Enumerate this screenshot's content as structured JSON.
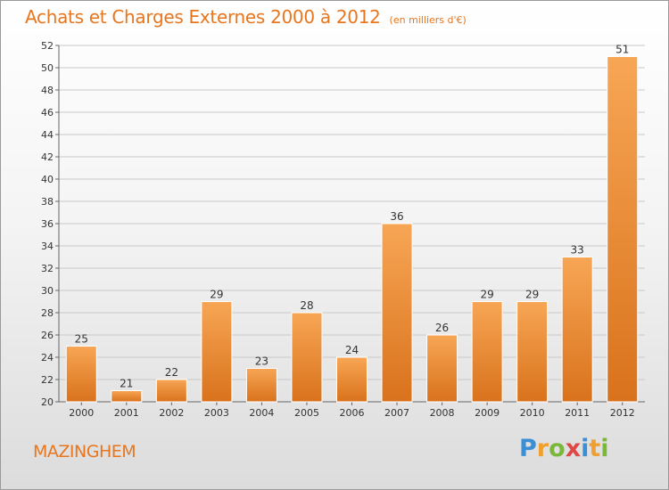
{
  "header": {
    "title": "Achats et Charges Externes 2000 à 2012",
    "subtitle": "(en milliers d'€)"
  },
  "footer": {
    "commune": "MAZINGHEM",
    "logo_text": "Proxiti",
    "logo_letters": [
      {
        "ch": "P",
        "color": "#3a8fd6"
      },
      {
        "ch": "r",
        "color": "#f0a030"
      },
      {
        "ch": "o",
        "color": "#7ab83a"
      },
      {
        "ch": "x",
        "color": "#e04848"
      },
      {
        "ch": "i",
        "color": "#3a8fd6"
      },
      {
        "ch": "t",
        "color": "#f0a030"
      },
      {
        "ch": "i",
        "color": "#7ab83a"
      }
    ]
  },
  "colors": {
    "accent": "#e8761e",
    "bar_light": "#f7a655",
    "bar_dark": "#d9721c",
    "grid": "#c8c8c8"
  },
  "chart_data": {
    "type": "bar",
    "title": "Achats et Charges Externes 2000 à 2012",
    "subtitle": "(en milliers d'€)",
    "categories": [
      "2000",
      "2001",
      "2002",
      "2003",
      "2004",
      "2005",
      "2006",
      "2007",
      "2008",
      "2009",
      "2010",
      "2011",
      "2012"
    ],
    "values": [
      25,
      21,
      22,
      29,
      23,
      28,
      24,
      36,
      26,
      29,
      29,
      33,
      51
    ],
    "ylim": [
      20,
      52
    ],
    "yticks": [
      20,
      22,
      24,
      26,
      28,
      30,
      32,
      34,
      36,
      38,
      40,
      42,
      44,
      46,
      48,
      50,
      52
    ],
    "grid": true,
    "xlabel": "",
    "ylabel": ""
  }
}
